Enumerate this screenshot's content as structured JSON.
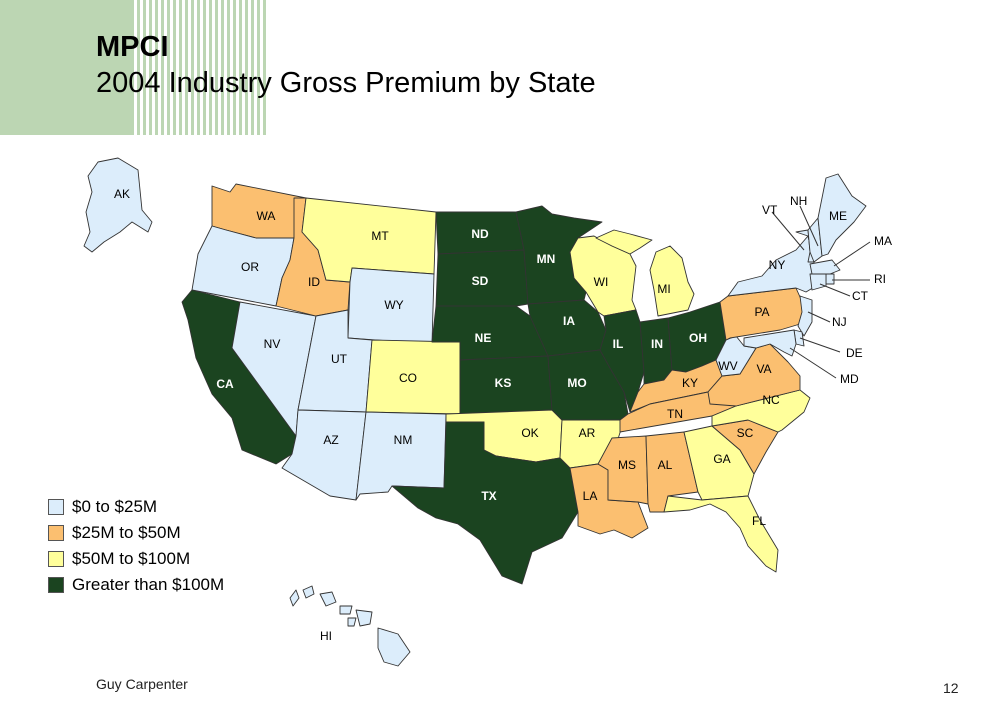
{
  "title_line1": "MPCI",
  "title_line2": "2004 Industry Gross Premium by State",
  "colors": {
    "low": "#dcedfb",
    "mid": "#fbbf70",
    "high": "#ffff9b",
    "top": "#1b4420",
    "deco_green": "#bcd6b3"
  },
  "legend": [
    {
      "label": "$0 to $25M",
      "tier": "low"
    },
    {
      "label": "$25M to $50M",
      "tier": "mid"
    },
    {
      "label": "$50M to $100M",
      "tier": "high"
    },
    {
      "label": "Greater than $100M",
      "tier": "top"
    }
  ],
  "states": {
    "AK": "low",
    "HI": "low",
    "WA": "mid",
    "OR": "low",
    "CA": "top",
    "NV": "low",
    "ID": "mid",
    "MT": "high",
    "WY": "low",
    "UT": "low",
    "CO": "high",
    "AZ": "low",
    "NM": "low",
    "ND": "top",
    "SD": "top",
    "NE": "top",
    "KS": "top",
    "OK": "high",
    "TX": "top",
    "MN": "top",
    "IA": "top",
    "MO": "top",
    "AR": "high",
    "LA": "mid",
    "WI": "high",
    "IL": "top",
    "MS": "mid",
    "MI": "high",
    "IN": "top",
    "KY": "mid",
    "TN": "mid",
    "AL": "mid",
    "OH": "top",
    "WV": "low",
    "GA": "high",
    "FL": "high",
    "SC": "mid",
    "NC": "high",
    "VA": "mid",
    "PA": "mid",
    "NY": "low",
    "VT": "low",
    "NH": "low",
    "ME": "low",
    "MA": "low",
    "RI": "low",
    "CT": "low",
    "NJ": "low",
    "DE": "low",
    "MD": "low"
  },
  "footer": "Guy Carpenter",
  "page_number": "12"
}
